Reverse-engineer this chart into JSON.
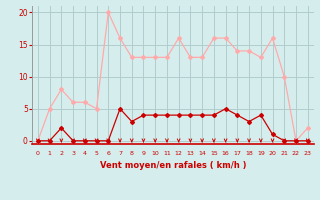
{
  "x": [
    0,
    1,
    2,
    3,
    4,
    5,
    6,
    7,
    8,
    9,
    10,
    11,
    12,
    13,
    14,
    15,
    16,
    17,
    18,
    19,
    20,
    21,
    22,
    23
  ],
  "vent_moyen": [
    0,
    0,
    2,
    0,
    0,
    0,
    0,
    5,
    3,
    4,
    4,
    4,
    4,
    4,
    4,
    4,
    5,
    4,
    3,
    4,
    1,
    0,
    0,
    0
  ],
  "rafales": [
    0,
    5,
    8,
    6,
    6,
    5,
    20,
    16,
    13,
    13,
    13,
    13,
    16,
    13,
    13,
    16,
    16,
    14,
    14,
    13,
    16,
    10,
    0,
    2
  ],
  "line_color_moyen": "#cc0000",
  "line_color_rafales": "#ffaaaa",
  "marker_color_moyen": "#cc0000",
  "marker_color_rafales": "#ffaaaa",
  "arrow_color": "#cc0000",
  "bg_color": "#d5eeed",
  "grid_color": "#b0cccc",
  "xlabel": "Vent moyen/en rafales ( km/h )",
  "ylim": [
    -0.5,
    21
  ],
  "yticks": [
    0,
    5,
    10,
    15,
    20
  ],
  "xlim": [
    -0.5,
    23.5
  ]
}
